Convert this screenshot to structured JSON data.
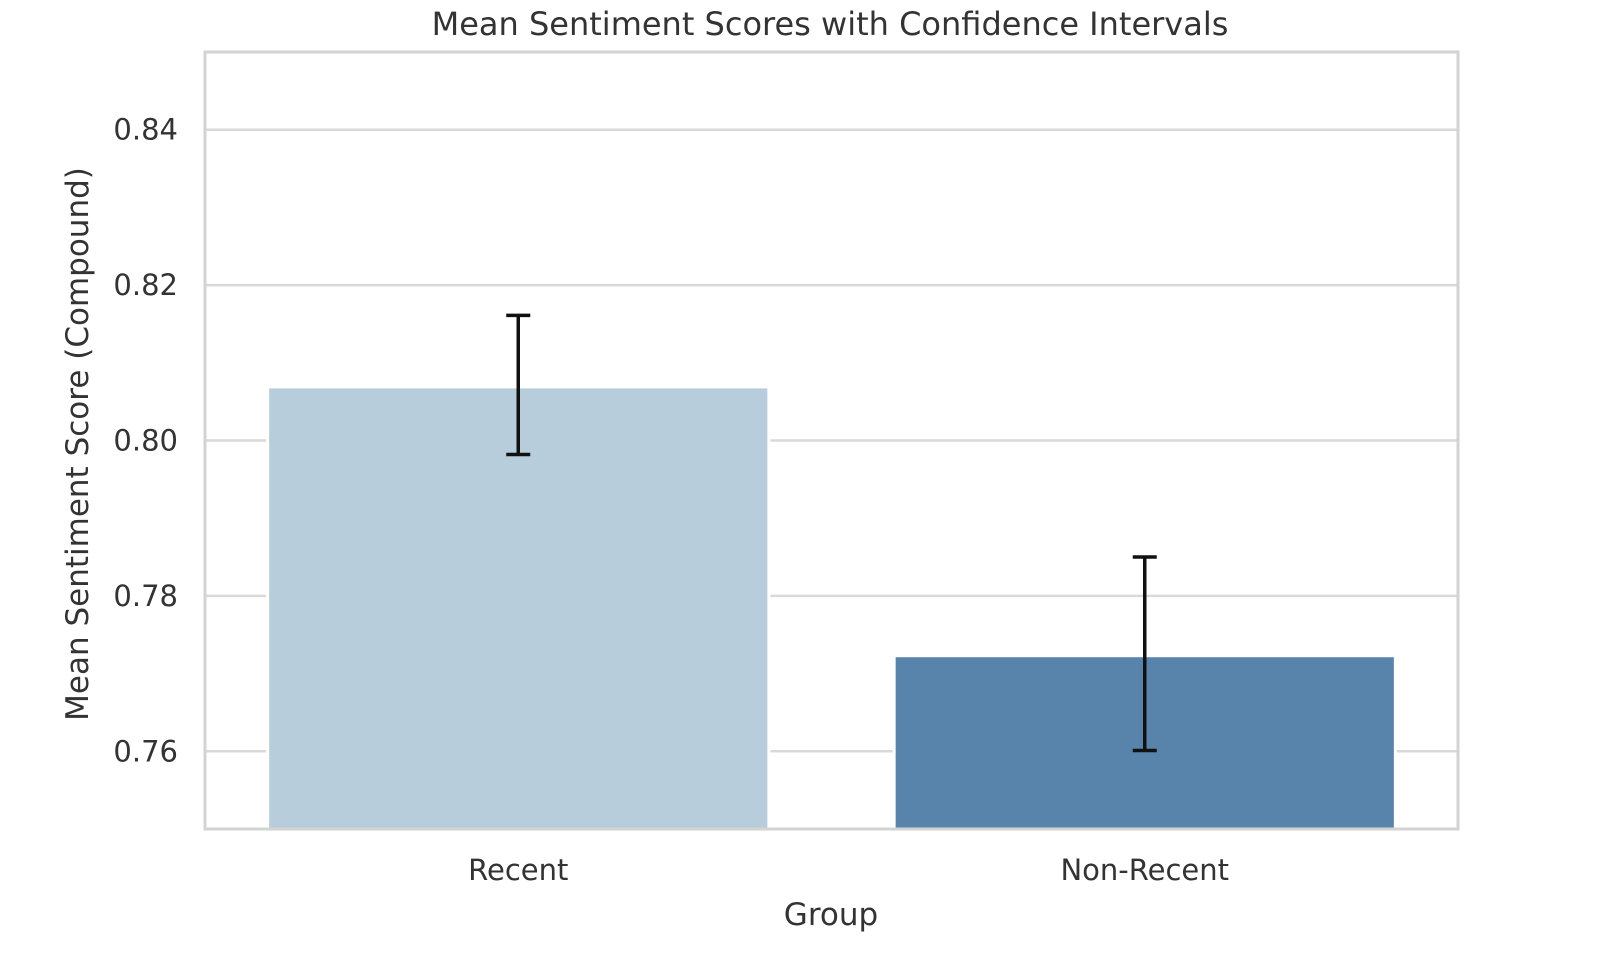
{
  "chart_data": {
    "type": "bar",
    "title": "Mean Sentiment Scores with Confidence Intervals",
    "xlabel": "Group",
    "ylabel": "Mean Sentiment Score (Compound)",
    "categories": [
      "Recent",
      "Non-Recent"
    ],
    "values": [
      0.8069,
      0.7723
    ],
    "error_bars": [
      {
        "lower": 0.7982,
        "upper": 0.8161
      },
      {
        "lower": 0.7601,
        "upper": 0.785
      }
    ],
    "colors": [
      "#b7cddc",
      "#5884ab"
    ],
    "error_bar_color": "#111111",
    "ylim": [
      0.75,
      0.85
    ],
    "yticks": [
      0.76,
      0.78,
      0.8,
      0.82,
      0.84
    ],
    "ytick_labels": [
      "0.76",
      "0.78",
      "0.80",
      "0.82",
      "0.84"
    ],
    "grid": "horizontal"
  }
}
